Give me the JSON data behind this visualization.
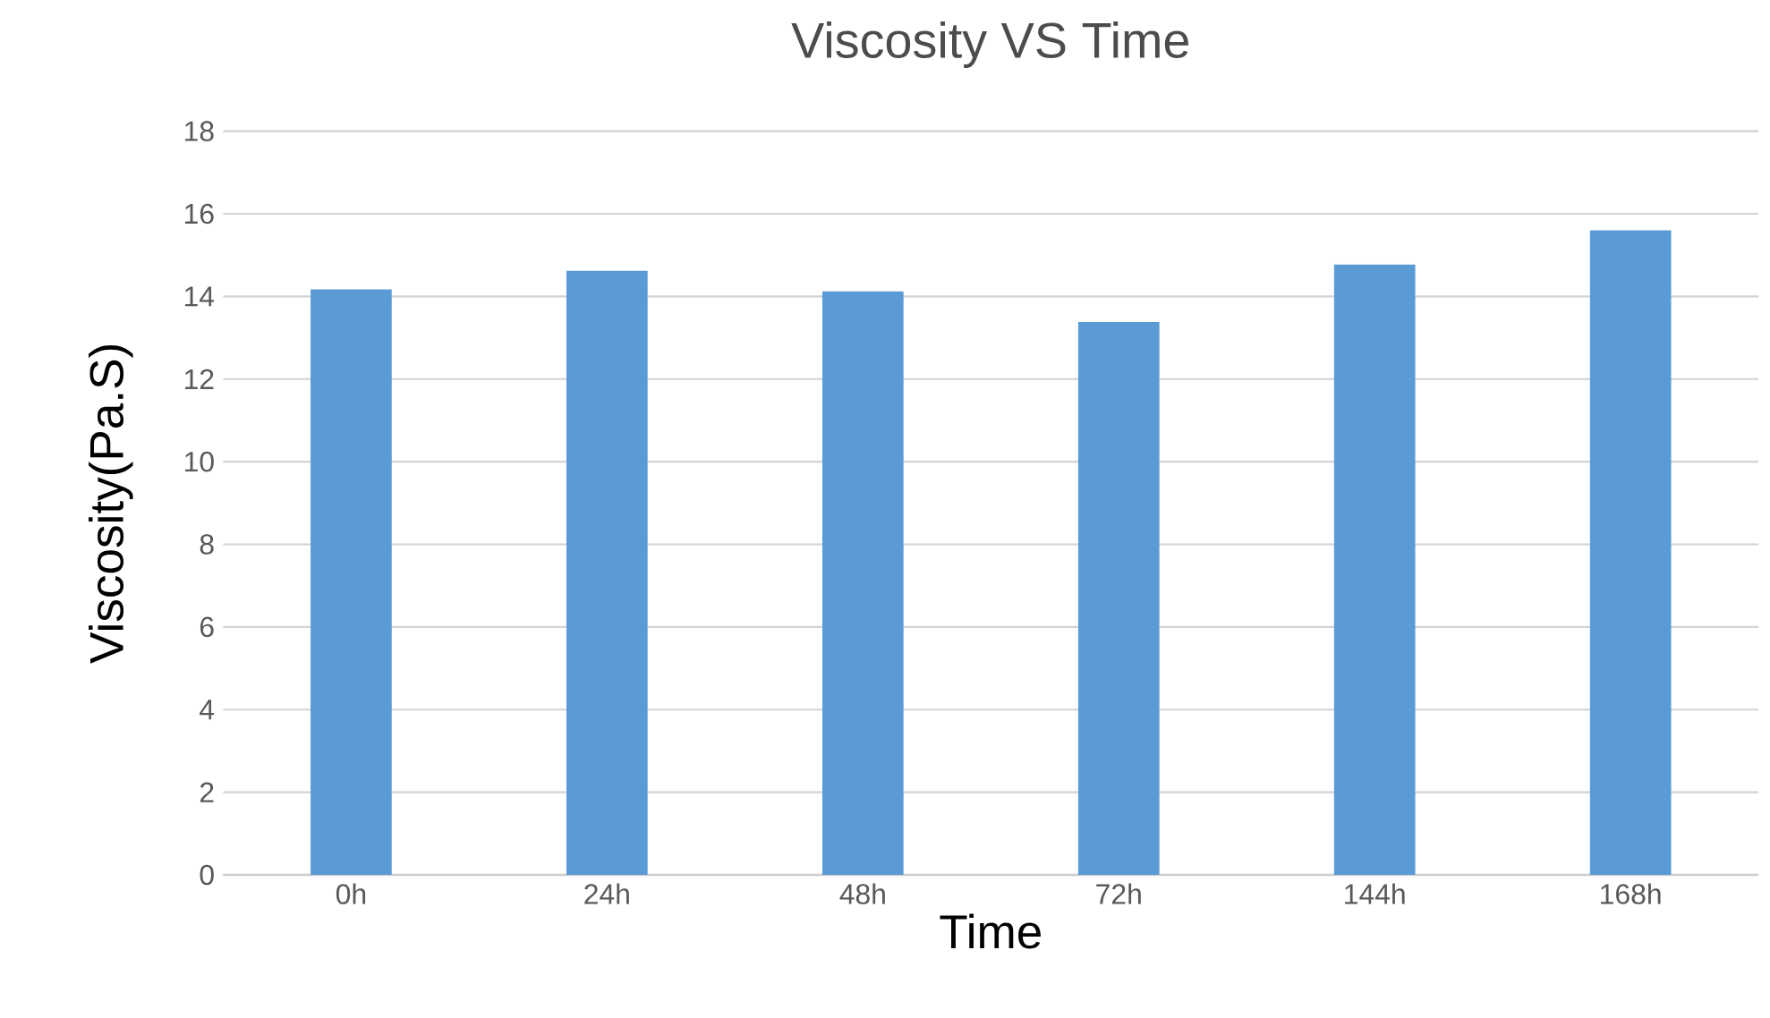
{
  "chart_data": {
    "type": "bar",
    "title": "Viscosity VS Time",
    "xlabel": "Time",
    "ylabel": "Viscosity(Pa.S)",
    "categories": [
      "0h",
      "24h",
      "48h",
      "72h",
      "144h",
      "168h"
    ],
    "values": [
      14.17,
      14.62,
      14.12,
      13.38,
      14.77,
      15.6
    ],
    "color": "#5b9bd5",
    "ylim": [
      0,
      18
    ],
    "yticks": [
      0,
      2,
      4,
      6,
      8,
      10,
      12,
      14,
      16,
      18
    ],
    "grid": "y"
  }
}
